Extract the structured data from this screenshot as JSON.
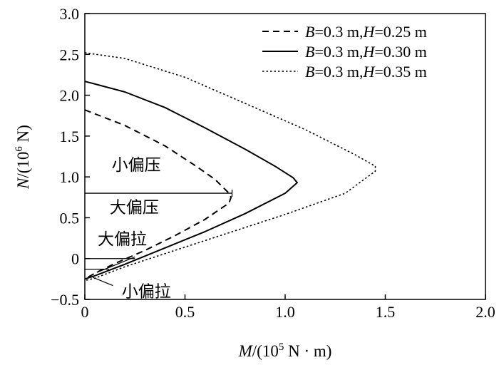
{
  "chart_data": {
    "type": "line",
    "title": "",
    "xlabel": {
      "italic": "M",
      "pre": "/(10",
      "sup": "5",
      "post": " N · m)"
    },
    "ylabel": {
      "italic": "N",
      "pre": "/(10",
      "sup": "6",
      "post": " N)"
    },
    "xlim": [
      0,
      2.0
    ],
    "ylim": [
      -0.5,
      3.0
    ],
    "xticks": [
      "0",
      "0.5",
      "1.0",
      "1.5",
      "2.0"
    ],
    "yticks": [
      "−0.5",
      "0",
      "0.5",
      "1.0",
      "1.5",
      "2.0",
      "2.5",
      "3.0"
    ],
    "grid": false,
    "legend_position": "top-right",
    "series": [
      {
        "name": "B=0.3 m,H=0.25 m",
        "legend": {
          "i1": "B",
          "t1": "=0.3 m,",
          "i2": "H",
          "t2": "=0.25 m"
        },
        "style": "dashed",
        "points": [
          [
            0,
            1.82
          ],
          [
            0.2,
            1.63
          ],
          [
            0.4,
            1.38
          ],
          [
            0.55,
            1.14
          ],
          [
            0.65,
            0.97
          ],
          [
            0.72,
            0.8
          ],
          [
            0.73,
            0.75
          ],
          [
            0.72,
            0.68
          ],
          [
            0.6,
            0.48
          ],
          [
            0.45,
            0.28
          ],
          [
            0.3,
            0.1
          ],
          [
            0.15,
            -0.06
          ],
          [
            0.05,
            -0.18
          ],
          [
            0,
            -0.25
          ]
        ]
      },
      {
        "name": "B=0.3 m,H=0.30 m",
        "legend": {
          "i1": "B",
          "t1": "=0.3 m,",
          "i2": "H",
          "t2": "=0.30 m"
        },
        "style": "solid",
        "points": [
          [
            0,
            2.17
          ],
          [
            0.2,
            2.04
          ],
          [
            0.4,
            1.85
          ],
          [
            0.6,
            1.6
          ],
          [
            0.8,
            1.34
          ],
          [
            0.95,
            1.13
          ],
          [
            1.04,
            0.99
          ],
          [
            1.06,
            0.93
          ],
          [
            1.0,
            0.8
          ],
          [
            0.8,
            0.55
          ],
          [
            0.6,
            0.33
          ],
          [
            0.4,
            0.13
          ],
          [
            0.2,
            -0.07
          ],
          [
            0.05,
            -0.21
          ],
          [
            0,
            -0.25
          ]
        ]
      },
      {
        "name": "B=0.3 m,H=0.35 m",
        "legend": {
          "i1": "B",
          "t1": "=0.3 m,",
          "i2": "H",
          "t2": "=0.35 m"
        },
        "style": "dotted",
        "points": [
          [
            0,
            2.52
          ],
          [
            0.2,
            2.45
          ],
          [
            0.5,
            2.22
          ],
          [
            0.8,
            1.9
          ],
          [
            1.1,
            1.58
          ],
          [
            1.35,
            1.27
          ],
          [
            1.45,
            1.13
          ],
          [
            1.45,
            1.07
          ],
          [
            1.3,
            0.8
          ],
          [
            1.0,
            0.54
          ],
          [
            0.7,
            0.3
          ],
          [
            0.4,
            0.06
          ],
          [
            0.2,
            -0.1
          ],
          [
            0.05,
            -0.24
          ],
          [
            0,
            -0.27
          ]
        ]
      }
    ],
    "reference_lines": [
      {
        "y": 0.8,
        "x_from": 0,
        "x_to": 0.735
      },
      {
        "y": 0.0,
        "x_from": 0,
        "x_to": 0.25
      },
      {
        "y": -0.13,
        "x_from": 0,
        "x_to": 0.12
      }
    ],
    "annotations": [
      {
        "text": "小偏压",
        "x": 0.07,
        "y": 1.08
      },
      {
        "text": "大偏压",
        "x": 0.06,
        "y": 0.56
      },
      {
        "text": "大偏拉",
        "x": 0.0,
        "y": 0.17
      },
      {
        "text": "小偏拉",
        "x": 0.12,
        "y": -0.47
      }
    ],
    "leaders": [
      {
        "from": [
          0.25,
          0.02
        ],
        "to": [
          0.06,
          -0.17
        ]
      },
      {
        "from": [
          0.14,
          -0.33
        ],
        "to": [
          0.04,
          -0.23
        ]
      }
    ]
  }
}
